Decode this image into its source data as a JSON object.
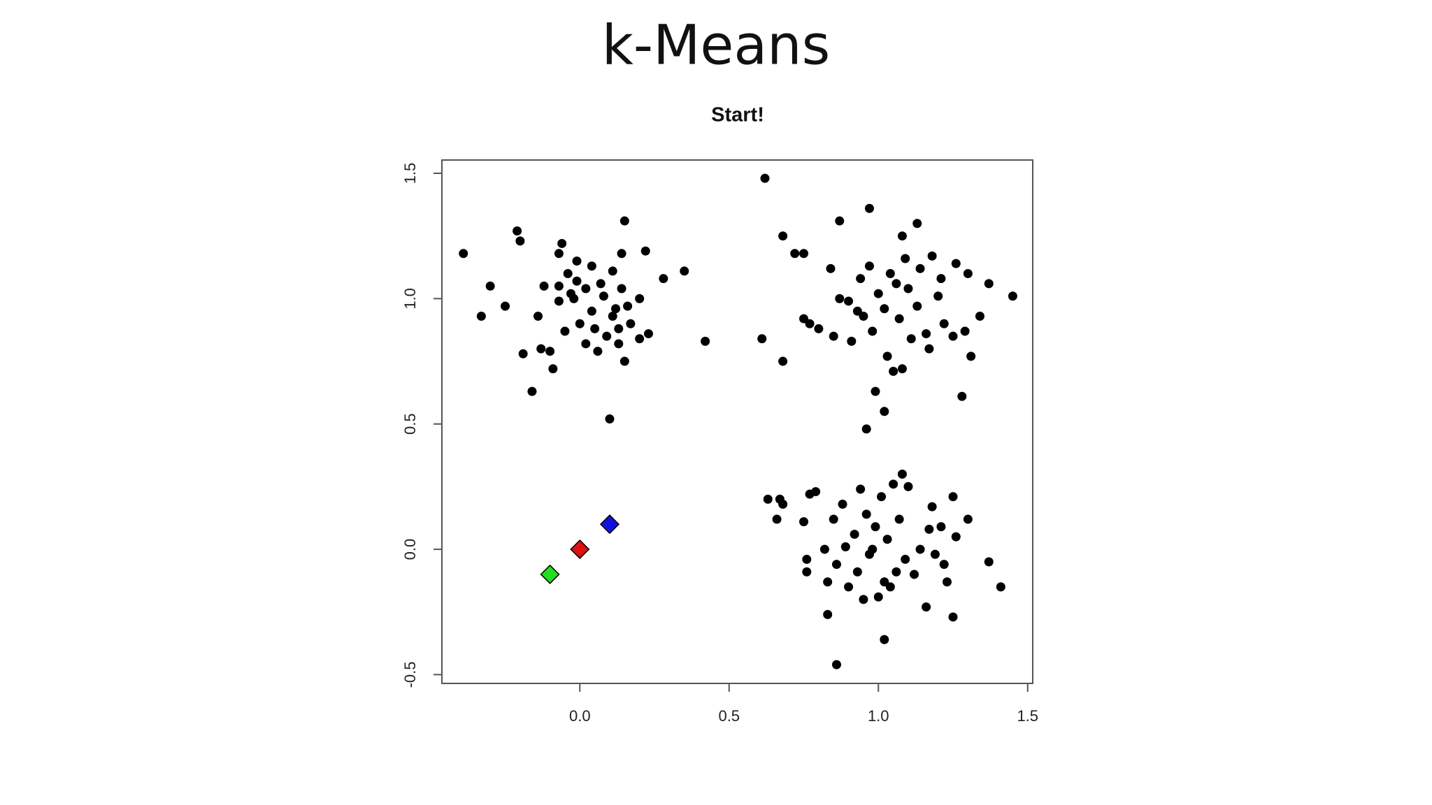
{
  "slide_title": "k-Means",
  "chart_data": {
    "type": "scatter",
    "title": "Start!",
    "xlim": [
      -0.462,
      1.517
    ],
    "ylim": [
      -0.535,
      1.553
    ],
    "xticks": [
      {
        "value": 0,
        "label": "0.0"
      },
      0.5,
      {
        "value": 1,
        "label": "1.0"
      },
      1.5
    ],
    "yticks": [
      -0.5,
      {
        "value": 0,
        "label": "0.0"
      },
      0.5,
      {
        "value": 1,
        "label": "1.0"
      },
      1.5
    ],
    "series": [
      {
        "color": "#000000",
        "marker": "circle",
        "x": [
          -0.39,
          -0.21,
          -0.2,
          0.15,
          0.35,
          0.42,
          -0.16,
          0.1,
          0.28,
          0.22,
          -0.3,
          -0.33,
          -0.25,
          -0.19,
          -0.14,
          -0.1,
          -0.09,
          -0.07,
          -0.07,
          -0.07,
          -0.06,
          -0.04,
          -0.03,
          -0.02,
          -0.01,
          0.0,
          0.02,
          0.02,
          0.04,
          0.04,
          0.06,
          0.08,
          0.09,
          0.11,
          0.12,
          0.13,
          0.14,
          0.13,
          0.15,
          0.16,
          0.17,
          0.2,
          0.2,
          0.23,
          -0.12,
          -0.05,
          0.07,
          -0.01,
          0.14,
          0.05,
          -0.13,
          0.11,
          0.62,
          0.97,
          0.87,
          1.13,
          0.68,
          0.61,
          0.68,
          0.99,
          1.02,
          0.96,
          1.28,
          1.45,
          1.37,
          0.72,
          0.75,
          0.75,
          0.77,
          0.8,
          0.85,
          0.84,
          0.87,
          0.9,
          0.91,
          0.94,
          0.95,
          0.97,
          0.98,
          1.0,
          1.02,
          1.03,
          1.04,
          1.05,
          1.06,
          1.07,
          1.08,
          1.08,
          1.1,
          1.11,
          1.13,
          1.14,
          1.17,
          1.18,
          1.2,
          1.22,
          1.25,
          1.26,
          1.29,
          1.3,
          1.31,
          1.34,
          1.21,
          0.93,
          1.16,
          1.09,
          0.86,
          1.02,
          1.41,
          1.37,
          0.63,
          0.66,
          1.08,
          1.25,
          0.83,
          0.67,
          0.68,
          0.75,
          0.77,
          0.79,
          0.76,
          0.76,
          0.82,
          0.83,
          0.85,
          0.86,
          0.88,
          0.89,
          0.9,
          0.92,
          0.93,
          0.94,
          0.95,
          0.96,
          0.97,
          0.99,
          1.0,
          1.01,
          1.02,
          1.03,
          1.05,
          1.06,
          1.07,
          1.09,
          1.1,
          1.12,
          1.14,
          1.16,
          1.17,
          1.18,
          1.19,
          1.21,
          1.22,
          1.23,
          1.25,
          1.26,
          1.3,
          0.98,
          1.04
        ],
        "values": [
          1.18,
          1.27,
          1.23,
          1.31,
          1.11,
          0.83,
          0.63,
          0.52,
          1.08,
          1.19,
          1.05,
          0.93,
          0.97,
          0.78,
          0.93,
          0.79,
          0.72,
          1.18,
          1.05,
          0.99,
          1.22,
          1.1,
          1.02,
          1.0,
          1.07,
          0.9,
          1.04,
          0.82,
          1.13,
          0.95,
          0.79,
          1.01,
          0.85,
          1.11,
          0.96,
          0.88,
          1.18,
          0.82,
          0.75,
          0.97,
          0.9,
          0.84,
          1.0,
          0.86,
          1.05,
          0.87,
          1.06,
          1.15,
          1.04,
          0.88,
          0.8,
          0.93,
          1.48,
          1.36,
          1.31,
          1.3,
          1.25,
          0.84,
          0.75,
          0.63,
          0.55,
          0.48,
          0.61,
          1.01,
          1.06,
          1.18,
          1.18,
          0.92,
          0.9,
          0.88,
          0.85,
          1.12,
          1.0,
          0.99,
          0.83,
          1.08,
          0.93,
          1.13,
          0.87,
          1.02,
          0.96,
          0.77,
          1.1,
          0.71,
          1.06,
          0.92,
          1.25,
          0.72,
          1.04,
          0.84,
          0.97,
          1.12,
          0.8,
          1.17,
          1.01,
          0.9,
          0.85,
          1.14,
          0.87,
          1.1,
          0.77,
          0.93,
          1.08,
          0.95,
          0.86,
          1.16,
          -0.46,
          -0.36,
          -0.15,
          -0.05,
          0.2,
          0.12,
          0.3,
          -0.27,
          -0.26,
          0.2,
          0.18,
          0.11,
          0.22,
          0.23,
          -0.04,
          -0.09,
          0.0,
          -0.13,
          0.12,
          -0.06,
          0.18,
          0.01,
          -0.15,
          0.06,
          -0.09,
          0.24,
          -0.2,
          0.14,
          -0.02,
          0.09,
          -0.19,
          0.21,
          -0.13,
          0.04,
          0.26,
          -0.09,
          0.12,
          -0.04,
          0.25,
          -0.1,
          0.0,
          -0.23,
          0.08,
          0.17,
          -0.02,
          0.09,
          -0.06,
          -0.13,
          0.21,
          0.05,
          0.12,
          0.0,
          -0.15
        ]
      },
      {
        "colors": [
          "#22dd22",
          "#dd1111",
          "#1111dd"
        ],
        "marker": "diamond",
        "x": [
          -0.1,
          0,
          0.1
        ],
        "values": [
          -0.1,
          0,
          0.1
        ]
      }
    ]
  }
}
